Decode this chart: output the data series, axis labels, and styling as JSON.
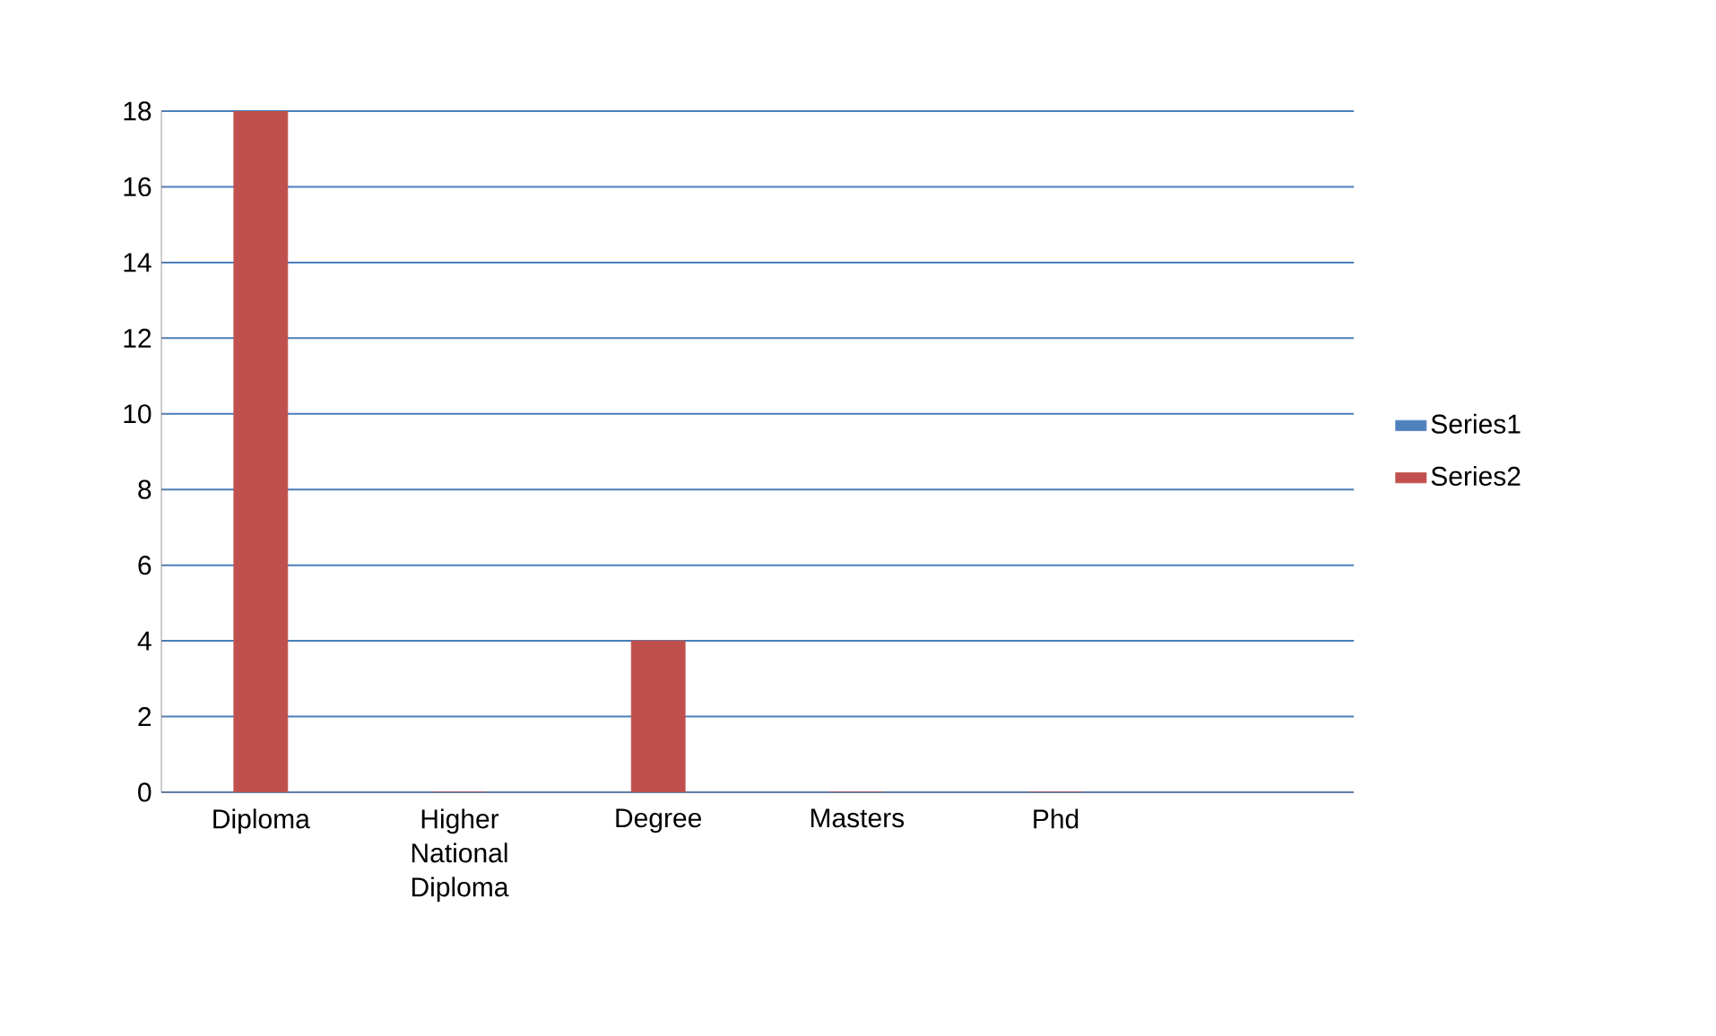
{
  "chart_data": {
    "type": "bar",
    "categories": [
      "Diploma",
      "Higher National Diploma",
      "Degree",
      "Masters",
      "Phd",
      null
    ],
    "series": [
      {
        "name": "Series1",
        "color": "#4f81bd",
        "values": [
          null,
          null,
          null,
          null,
          null,
          null
        ]
      },
      {
        "name": "Series2",
        "color": "#c0504d",
        "values": [
          18,
          0,
          4,
          0,
          0,
          null
        ]
      }
    ],
    "ylim": [
      0,
      18
    ],
    "yticks": [
      0,
      2,
      4,
      6,
      8,
      10,
      12,
      14,
      16,
      18
    ],
    "grid": "y",
    "legend": "right"
  }
}
